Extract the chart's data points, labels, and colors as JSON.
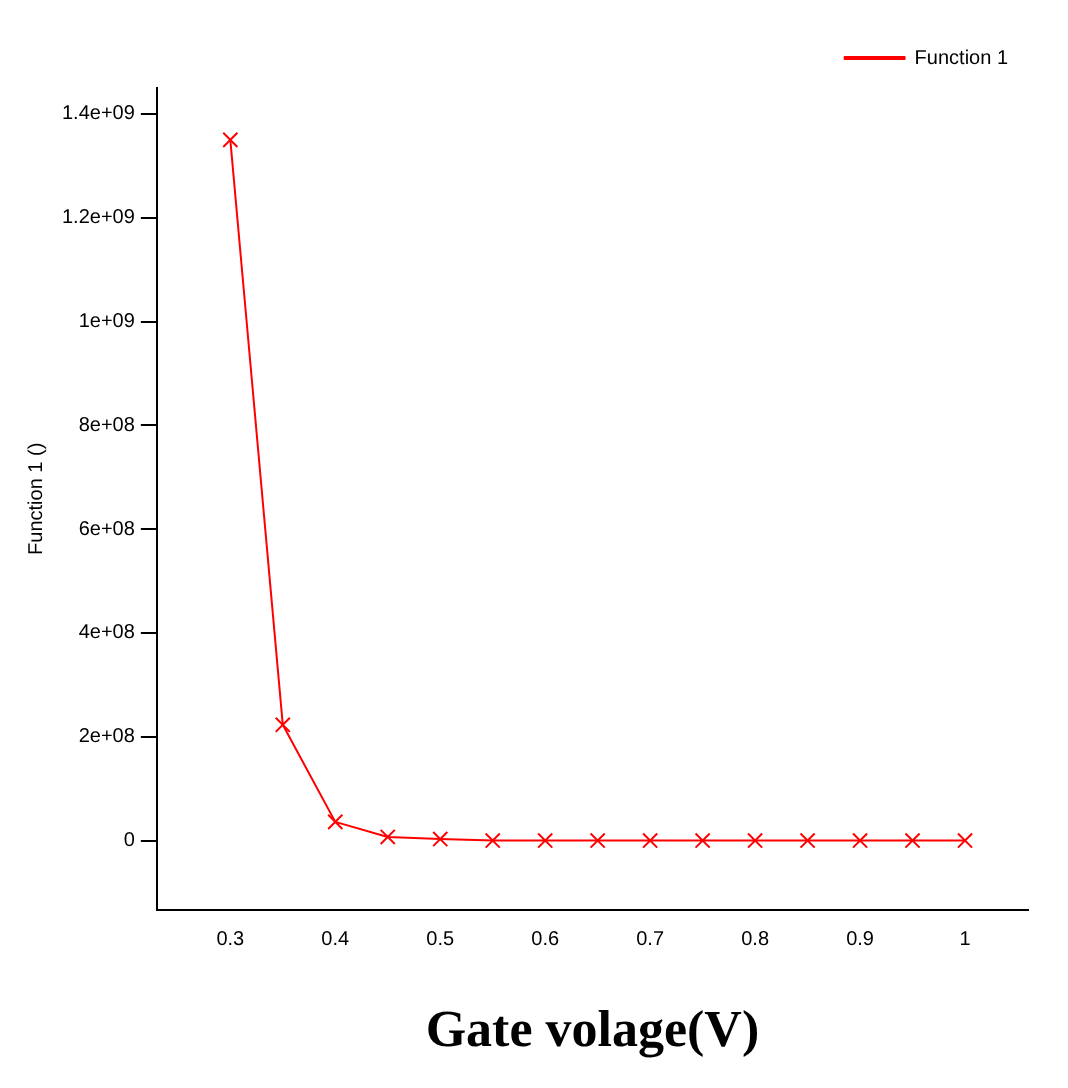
{
  "chart_data": {
    "type": "line",
    "xlabel": "Gate volage(V)",
    "ylabel": "Function 1 ()",
    "x": [
      0.3,
      0.35,
      0.4,
      0.45,
      0.5,
      0.55,
      0.6,
      0.65,
      0.7,
      0.75,
      0.8,
      0.85,
      0.9,
      0.95,
      1
    ],
    "series": [
      {
        "name": "Function 1",
        "color": "#ff0000",
        "values": [
          1350000000,
          223000000,
          36000000,
          7000000,
          3000000,
          0,
          0,
          0,
          0,
          0,
          0,
          0,
          0,
          0,
          0
        ]
      }
    ],
    "xlim": [
      0.23,
      1.06
    ],
    "xticks": [
      0.3,
      0.4,
      0.5,
      0.6,
      0.7,
      0.8,
      0.9,
      1
    ],
    "ylim": [
      -133000000,
      1450000000
    ],
    "yticks": [
      {
        "value": 0,
        "label": "0"
      },
      {
        "value": 200000000,
        "label": "2e+08"
      },
      {
        "value": 400000000,
        "label": "4e+08"
      },
      {
        "value": 600000000,
        "label": "6e+08"
      },
      {
        "value": 800000000,
        "label": "8e+08"
      },
      {
        "value": 1000000000,
        "label": "1e+09"
      },
      {
        "value": 1200000000,
        "label": "1.2e+09"
      },
      {
        "value": 1400000000,
        "label": "1.4e+09"
      }
    ],
    "marker": "cross",
    "line_style": "solid",
    "legend": "top right",
    "grid": false
  }
}
